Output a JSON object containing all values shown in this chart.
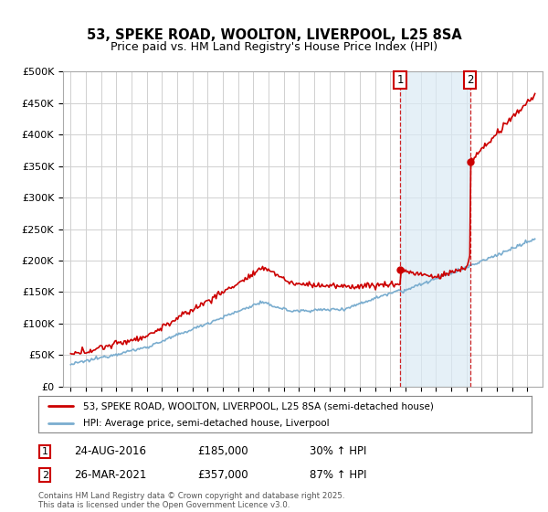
{
  "title": "53, SPEKE ROAD, WOOLTON, LIVERPOOL, L25 8SA",
  "subtitle": "Price paid vs. HM Land Registry's House Price Index (HPI)",
  "legend_property": "53, SPEKE ROAD, WOOLTON, LIVERPOOL, L25 8SA (semi-detached house)",
  "legend_hpi": "HPI: Average price, semi-detached house, Liverpool",
  "footnote": "Contains HM Land Registry data © Crown copyright and database right 2025.\nThis data is licensed under the Open Government Licence v3.0.",
  "annotation1_date": "24-AUG-2016",
  "annotation1_price": "£185,000",
  "annotation1_hpi": "30% ↑ HPI",
  "annotation2_date": "26-MAR-2021",
  "annotation2_price": "£357,000",
  "annotation2_hpi": "87% ↑ HPI",
  "color_property": "#cc0000",
  "color_hpi": "#7aadcf",
  "color_annotation": "#cc0000",
  "shade_color": "#daeaf5",
  "ylim": [
    0,
    500000
  ],
  "yticks": [
    0,
    50000,
    100000,
    150000,
    200000,
    250000,
    300000,
    350000,
    400000,
    450000,
    500000
  ],
  "plot_background": "#ffffff",
  "grid_color": "#d0d0d0",
  "sale1_x": 2016.64,
  "sale1_y": 185000,
  "sale2_x": 2021.23,
  "sale2_y": 357000,
  "xmin": 1994.5,
  "xmax": 2026.0
}
